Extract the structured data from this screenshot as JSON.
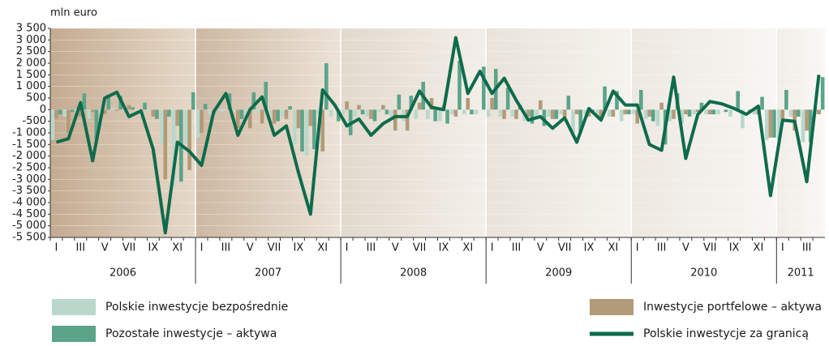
{
  "chart_data": {
    "type": "bar",
    "y_label": "mln euro",
    "categories": [
      "I",
      null,
      "III",
      null,
      "V",
      null,
      "VII",
      null,
      "IX",
      null,
      "XI",
      null,
      "I",
      null,
      "III",
      null,
      "V",
      null,
      "VII",
      null,
      "IX",
      null,
      "XI",
      null,
      "I",
      null,
      "III",
      null,
      "V",
      null,
      "VII",
      null,
      "IX",
      null,
      "XI",
      null,
      "I",
      null,
      "III",
      null,
      "V",
      null,
      "VII",
      null,
      "IX",
      null,
      "XI",
      null,
      "I",
      null,
      "III",
      null,
      "V",
      null,
      "VII",
      null,
      "IX",
      null,
      "XI",
      null,
      "I",
      null,
      "III",
      null
    ],
    "years": [
      "2006",
      "2007",
      "2008",
      "2009",
      "2010",
      "2011"
    ],
    "band_colors": [
      [
        "#c4ab90",
        "#e6d9c9"
      ],
      [
        "#cdb8a2",
        "#ece3d7"
      ],
      [
        "#e2d9cd",
        "#f3efe9"
      ],
      [
        "#e9e3da",
        "#f6f3ee"
      ],
      [
        "#ede8e1",
        "#f8f6f3"
      ],
      [
        "#f1ede7",
        "#faf8f6"
      ]
    ],
    "ylim": [
      -5500,
      3500
    ],
    "yticks": [
      {
        "value": -5500,
        "label": "-5 500"
      },
      {
        "value": -5000,
        "label": "-5 000"
      },
      {
        "value": -4500,
        "label": "-4 500"
      },
      {
        "value": -4000,
        "label": "-4 000"
      },
      {
        "value": -3500,
        "label": "-3 500"
      },
      {
        "value": -3000,
        "label": "-3 000"
      },
      {
        "value": -2500,
        "label": "-2 500"
      },
      {
        "value": -2000,
        "label": "-2 000"
      },
      {
        "value": -1500,
        "label": "-1 500"
      },
      {
        "value": -1000,
        "label": "-1 000"
      },
      -500,
      0,
      500,
      {
        "value": 1000,
        "label": "1 000"
      },
      {
        "value": 1500,
        "label": "1 500"
      },
      {
        "value": 2000,
        "label": "2 000"
      },
      {
        "value": 2500,
        "label": "2 500"
      },
      {
        "value": 3000,
        "label": "3 000"
      },
      {
        "value": 3500,
        "label": "3 500"
      }
    ],
    "series": [
      {
        "name": "Polskie inwestycje bezpośrednie",
        "color": "#b9d8cb",
        "values": [
          -1300,
          -300,
          -200,
          -400,
          -200,
          100,
          -100,
          0,
          -100,
          -1500,
          -3300,
          -1500,
          -1200,
          -200,
          -100,
          -100,
          -200,
          -100,
          -200,
          -300,
          -1500,
          -2000,
          -200,
          -300,
          -200,
          -300,
          -300,
          -100,
          -300,
          -500,
          -400,
          -400,
          -500,
          -200,
          -200,
          -200,
          -300,
          -300,
          -300,
          -500,
          -400,
          -300,
          -200,
          -1000,
          -200,
          -300,
          -300,
          -500,
          -200,
          -400,
          -700,
          -500,
          -600,
          -200,
          -200,
          -200,
          -300,
          -800,
          -200,
          -1300,
          -1300,
          -300,
          -1400,
          -200
        ]
      },
      {
        "name": "Inwestycje portfelowe – aktywa",
        "color": "#b39a78",
        "values": [
          -400,
          -1000,
          -300,
          -100,
          -200,
          -50,
          200,
          0,
          -300,
          -3000,
          -700,
          -2600,
          -1000,
          -200,
          0,
          -800,
          -800,
          -600,
          -600,
          -400,
          -800,
          -700,
          -1800,
          0,
          350,
          200,
          -400,
          200,
          -900,
          -900,
          300,
          500,
          200,
          -300,
          500,
          0,
          500,
          -400,
          -400,
          -300,
          400,
          -400,
          -300,
          -200,
          -300,
          -400,
          -300,
          -200,
          -600,
          -300,
          300,
          -400,
          -200,
          -100,
          -200,
          0,
          0,
          0,
          -200,
          -1200,
          -400,
          -900,
          -900,
          -200
        ]
      },
      {
        "name": "Pozostałe inwestycje – aktywa",
        "color": "#5ba48a",
        "values": [
          -200,
          -100,
          700,
          -1300,
          650,
          600,
          100,
          300,
          -400,
          -300,
          -3100,
          750,
          250,
          0,
          700,
          -400,
          750,
          1200,
          -500,
          150,
          -1800,
          -1700,
          2000,
          -500,
          -1100,
          -200,
          -500,
          -200,
          650,
          600,
          1200,
          -500,
          -600,
          2100,
          -200,
          1850,
          1750,
          950,
          200,
          -600,
          -700,
          -400,
          600,
          -1000,
          -100,
          1000,
          800,
          -200,
          850,
          -500,
          -1500,
          700,
          -300,
          300,
          -200,
          -100,
          800,
          -100,
          550,
          -1200,
          850,
          -300,
          -1400,
          1400
        ]
      },
      {
        "name": "Polskie inwestycje za granicą",
        "color": "#0e6b4c",
        "kind": "line",
        "values": [
          -1400,
          -1250,
          300,
          -2200,
          500,
          750,
          -300,
          -50,
          -1700,
          -5300,
          -1400,
          -1800,
          -2400,
          -100,
          700,
          -1100,
          0,
          550,
          -1100,
          -700,
          -2700,
          -4500,
          850,
          200,
          -700,
          -400,
          -1100,
          -600,
          -300,
          -300,
          800,
          100,
          0,
          3100,
          700,
          1650,
          700,
          1350,
          400,
          -450,
          -300,
          -800,
          -350,
          -1400,
          50,
          -450,
          800,
          200,
          200,
          -1500,
          -1750,
          1400,
          -2100,
          -200,
          350,
          250,
          50,
          -200,
          150,
          -3700,
          -450,
          -500,
          -3100,
          1500
        ]
      }
    ]
  }
}
